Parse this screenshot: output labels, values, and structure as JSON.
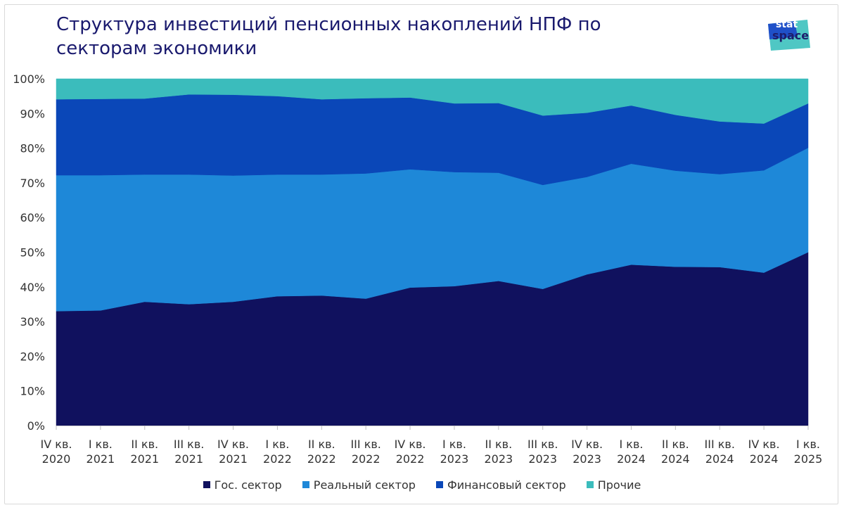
{
  "title_line1": "Структура инвестиций пенсионных накоплений НПФ по",
  "title_line2": "секторам экономики",
  "logo": {
    "line1": "stat",
    "line2": "space"
  },
  "colors": {
    "gov": "#10115e",
    "real": "#1e88d8",
    "fin": "#0a47b8",
    "other": "#3bbcbc"
  },
  "chart_data": {
    "type": "area",
    "stacked": true,
    "title": "Структура инвестиций пенсионных накоплений НПФ по секторам экономики",
    "ylim": [
      0,
      100
    ],
    "yticks": [
      "0%",
      "10%",
      "20%",
      "30%",
      "40%",
      "50%",
      "60%",
      "70%",
      "80%",
      "90%",
      "100%"
    ],
    "categories": [
      [
        "IV кв.",
        "2020"
      ],
      [
        "I кв.",
        "2021"
      ],
      [
        "II кв.",
        "2021"
      ],
      [
        "III кв.",
        "2021"
      ],
      [
        "IV кв.",
        "2021"
      ],
      [
        "I кв.",
        "2022"
      ],
      [
        "II кв.",
        "2022"
      ],
      [
        "III кв.",
        "2022"
      ],
      [
        "IV кв.",
        "2022"
      ],
      [
        "I кв.",
        "2023"
      ],
      [
        "II кв.",
        "2023"
      ],
      [
        "III кв.",
        "2023"
      ],
      [
        "IV кв.",
        "2023"
      ],
      [
        "I кв.",
        "2024"
      ],
      [
        "II кв.",
        "2024"
      ],
      [
        "III кв.",
        "2024"
      ],
      [
        "IV кв.",
        "2024"
      ],
      [
        "I кв.",
        "2025"
      ]
    ],
    "series": [
      {
        "name": "Гос. сектор",
        "values": [
          33,
          33.2,
          35.7,
          35,
          35.7,
          37.3,
          37.5,
          36.6,
          39.8,
          40.2,
          41.7,
          39.4,
          43.6,
          46.4,
          45.8,
          45.7,
          44.1,
          50
        ]
      },
      {
        "name": "Реальный сектор",
        "values": [
          39.2,
          39,
          36.7,
          37.4,
          36.4,
          35.1,
          34.9,
          36.1,
          34.1,
          32.9,
          31.2,
          30,
          28.1,
          29.1,
          27.7,
          26.8,
          29.5,
          30.1
        ]
      },
      {
        "name": "Финансовый сектор",
        "values": [
          21.9,
          22,
          21.9,
          23.1,
          23.3,
          22.6,
          21.7,
          21.7,
          20.7,
          19.8,
          20.1,
          20,
          18.5,
          16.8,
          16.1,
          15.2,
          13.5,
          12.8
        ]
      },
      {
        "name": "Прочие",
        "values": [
          5.9,
          5.8,
          5.7,
          4.5,
          4.6,
          5,
          5.9,
          5.6,
          5.4,
          7.1,
          7,
          10.6,
          9.8,
          7.7,
          10.4,
          12.3,
          12.9,
          7.1
        ]
      }
    ]
  }
}
